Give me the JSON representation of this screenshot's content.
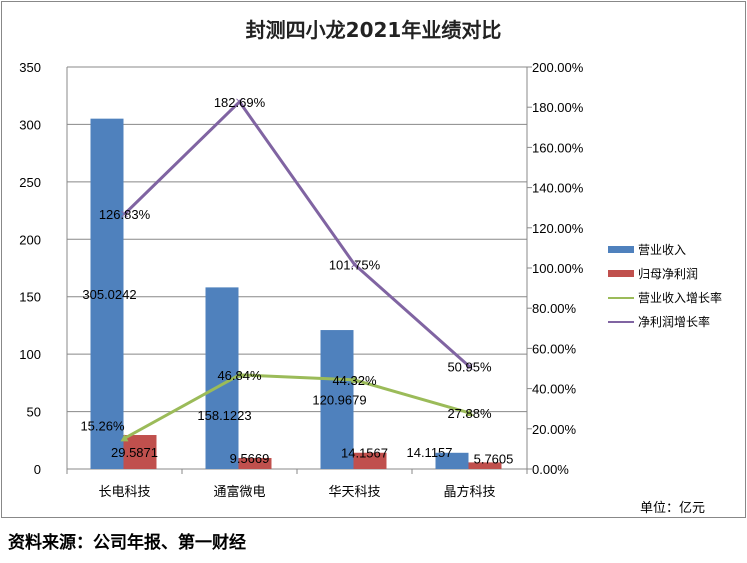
{
  "chart_data": {
    "type": "bar+line",
    "title": "封测四小龙2021年业绩对比",
    "categories": [
      "长电科技",
      "通富微电",
      "华天科技",
      "晶方科技"
    ],
    "series": [
      {
        "name": "营业收入",
        "type": "bar",
        "axis": "left",
        "color": "#4f81bd",
        "values": [
          305.0242,
          158.1223,
          120.9679,
          14.1157
        ],
        "labels": [
          "305.0242",
          "158.1223",
          "120.9679",
          "14.1157"
        ]
      },
      {
        "name": "归母净利润",
        "type": "bar",
        "axis": "left",
        "color": "#c0504d",
        "values": [
          29.5871,
          9.5669,
          14.1567,
          5.7605
        ],
        "labels": [
          "29.5871",
          "9.5669",
          "14.1567",
          "5.7605"
        ]
      },
      {
        "name": "营业收入增长率",
        "type": "line",
        "axis": "right",
        "color": "#9bbb59",
        "values": [
          15.26,
          46.84,
          44.32,
          27.88
        ],
        "labels": [
          "15.26%",
          "46.84%",
          "44.32%",
          "27.88%"
        ]
      },
      {
        "name": "净利润增长率",
        "type": "line",
        "axis": "right",
        "color": "#8064a2",
        "values": [
          126.83,
          182.69,
          101.75,
          50.95
        ],
        "labels": [
          "126.83%",
          "182.69%",
          "101.75%",
          "50.95%"
        ]
      }
    ],
    "left_axis": {
      "min": 0,
      "max": 350,
      "ticks": [
        "0",
        "50",
        "100",
        "150",
        "200",
        "250",
        "300",
        "350"
      ]
    },
    "right_axis": {
      "min": 0,
      "max": 200,
      "ticks": [
        "0.00%",
        "20.00%",
        "40.00%",
        "60.00%",
        "80.00%",
        "100.00%",
        "120.00%",
        "140.00%",
        "160.00%",
        "180.00%",
        "200.00%"
      ]
    },
    "legend_position": "right",
    "grid": true
  },
  "unit": "单位：亿元",
  "source": "资料来源：公司年报、第一财经"
}
